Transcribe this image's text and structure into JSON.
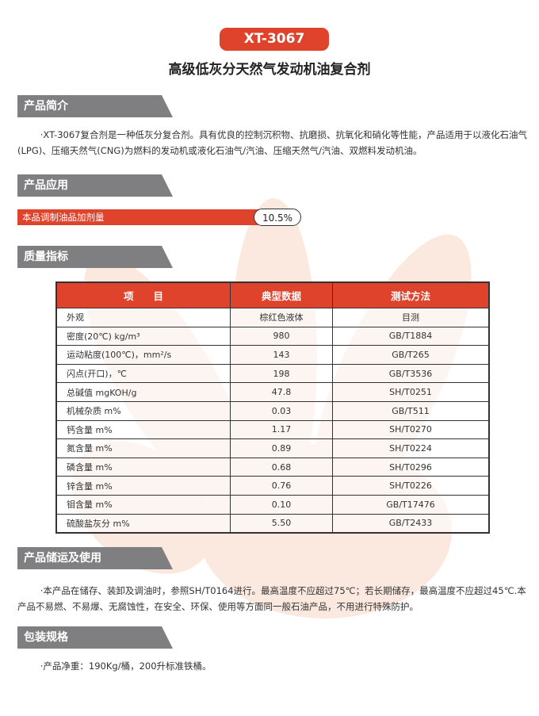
{
  "badge": "XT-3067",
  "title": "高级低灰分天然气发动机油复合剂",
  "sections": {
    "intro": {
      "heading": "产品简介",
      "text": "·XT-3067复合剂是一种低灰分复合剂。具有优良的控制沉积物、抗磨损、抗氧化和硝化等性能，产品适用于以液化石油气(LPG)、压缩天然气(CNG)为燃料的发动机或液化石油气/汽油、压缩天然气/汽油、双燃料发动机油。"
    },
    "application": {
      "heading": "产品应用",
      "label": "本品调制油品加剂量",
      "value": "10.5%"
    },
    "quality": {
      "heading": "质量指标",
      "columns": [
        "项　　目",
        "典型数据",
        "测试方法"
      ],
      "rows": [
        [
          "外观",
          "棕红色液体",
          "目测"
        ],
        [
          "密度(20℃) kg/m³",
          "980",
          "GB/T1884"
        ],
        [
          "运动粘度(100℃)，mm²/s",
          "143",
          "GB/T265"
        ],
        [
          "闪点(开口)，℃",
          "198",
          "GB/T3536"
        ],
        [
          "总碱值 mgKOH/g",
          "47.8",
          "SH/T0251"
        ],
        [
          "机械杂质 m%",
          "0.03",
          "GB/T511"
        ],
        [
          "钙含量 m%",
          "1.17",
          "SH/T0270"
        ],
        [
          "氮含量 m%",
          "0.89",
          "SH/T0224"
        ],
        [
          "磷含量 m%",
          "0.68",
          "SH/T0296"
        ],
        [
          "锌含量 m%",
          "0.76",
          "SH/T0226"
        ],
        [
          "钼含量 m%",
          "0.10",
          "GB/T17476"
        ],
        [
          "硫酸盐灰分 m%",
          "5.50",
          "GB/T2433"
        ]
      ]
    },
    "storage": {
      "heading": "产品储运及使用",
      "text": "·本产品在储存、装卸及调油时，参照SH/T0164进行。最高温度不应超过75℃；若长期储存，最高温度不应超过45℃.本产品不易燃、不易爆、无腐蚀性，在安全、环保、使用等方面同一般石油产品，不用进行特殊防护。"
    },
    "packaging": {
      "heading": "包装规格",
      "text": "·产品净重：190Kg/桶，200升标准铁桶。"
    }
  },
  "colors": {
    "accent": "#e0432b",
    "section": "#7f7f81",
    "watermark": "#fbe9df"
  }
}
